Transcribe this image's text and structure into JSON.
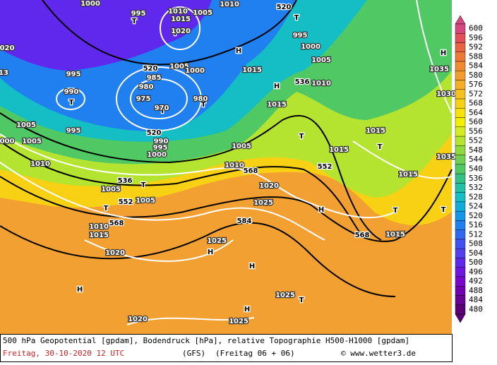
{
  "footer": {
    "line1": "500 hPa Geopotential [gpdam], Bodendruck [hPa], relative Topographie H500-H1000 [gpdam]",
    "date": "Freitag, 30-10-2020  12 UTC",
    "model": "(GFS)",
    "run": "(Freitag 06 + 06)",
    "credit": "© www.wetter3.de"
  },
  "legend": {
    "ticks": [
      600,
      596,
      592,
      588,
      584,
      580,
      576,
      572,
      568,
      564,
      560,
      556,
      552,
      548,
      544,
      540,
      536,
      532,
      528,
      524,
      520,
      516,
      512,
      508,
      504,
      500,
      496,
      492,
      488,
      484,
      480
    ],
    "colors": [
      "#d84880",
      "#e05058",
      "#e86440",
      "#ee7838",
      "#f28a30",
      "#f49c2c",
      "#f6ae28",
      "#f6c020",
      "#f8d014",
      "#f8e208",
      "#f0f000",
      "#d4ec20",
      "#b4e430",
      "#90da40",
      "#70d050",
      "#50c864",
      "#34c284",
      "#22c0a4",
      "#14bec4",
      "#12acdc",
      "#1496ea",
      "#2080f0",
      "#3068f0",
      "#4052f0",
      "#5040ee",
      "#6028ec",
      "#7014e0",
      "#7808cc",
      "#7000b0",
      "#680094",
      "#5c0078"
    ]
  },
  "map_labels": [
    "H",
    "H",
    "H",
    "H",
    "H",
    "H",
    "H",
    "H",
    "T",
    "T",
    "T",
    "T",
    "T",
    "T",
    "T",
    "T",
    "T",
    "T",
    "T",
    "T",
    "T",
    "1010",
    "1005",
    "1010",
    "995",
    "1000",
    "520",
    "1015",
    "1020",
    "995",
    "1000",
    "1005",
    "1010",
    "1015",
    "536",
    "1005",
    "1000",
    "520",
    "985",
    "980",
    "975",
    "970",
    "980",
    "995",
    "990",
    "1015",
    "1005",
    "995",
    "520",
    "990",
    "995",
    "1000",
    "1005",
    "1015",
    "1015",
    "1010",
    "1010",
    "568",
    "552",
    "1020",
    "1015",
    "1025",
    "536",
    "1005",
    "552",
    "1005",
    "568",
    "1010",
    "1015",
    "1020",
    "584",
    "1025",
    "568",
    "1015",
    "1025",
    "1020",
    "1025",
    "1035",
    "1030",
    "1035",
    "020",
    "13",
    "000",
    "1005"
  ]
}
